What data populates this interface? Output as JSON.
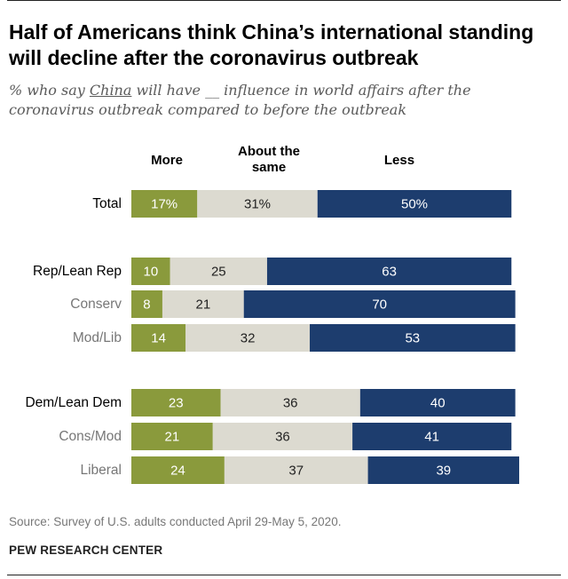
{
  "header": {
    "title": "Half of Americans think China’s international standing will decline after the coronavirus outbreak",
    "subtitle_pre": "% who say ",
    "subtitle_ul": "China",
    "subtitle_post": " will have __ influence in world affairs after the coronavirus outbreak compared to before the outbreak"
  },
  "chart_data": {
    "type": "bar",
    "stacked": true,
    "orientation": "horizontal",
    "series": [
      {
        "name": "More",
        "color": "#8a9a3c"
      },
      {
        "name": "About the same",
        "color": "#dcdad0"
      },
      {
        "name": "Less",
        "color": "#1d3d6e"
      }
    ],
    "rows": [
      {
        "label": "Total",
        "kind": "group",
        "values": [
          17,
          31,
          50
        ],
        "display": [
          "17%",
          "31%",
          "50%"
        ]
      },
      {
        "label": "Rep/Lean Rep",
        "kind": "group",
        "values": [
          10,
          25,
          63
        ],
        "display": [
          "10",
          "25",
          "63"
        ]
      },
      {
        "label": "Conserv",
        "kind": "sub",
        "values": [
          8,
          21,
          70
        ],
        "display": [
          "8",
          "21",
          "70"
        ]
      },
      {
        "label": "Mod/Lib",
        "kind": "sub",
        "values": [
          14,
          32,
          53
        ],
        "display": [
          "14",
          "32",
          "53"
        ]
      },
      {
        "label": "Dem/Lean Dem",
        "kind": "group",
        "values": [
          23,
          36,
          40
        ],
        "display": [
          "23",
          "36",
          "40"
        ]
      },
      {
        "label": "Cons/Mod",
        "kind": "sub",
        "values": [
          21,
          36,
          41
        ],
        "display": [
          "21",
          "36",
          "41"
        ]
      },
      {
        "label": "Liberal",
        "kind": "sub",
        "values": [
          24,
          37,
          39
        ],
        "display": [
          "24",
          "37",
          "39"
        ]
      }
    ],
    "xlim": [
      0,
      100
    ]
  },
  "column_headers": {
    "more": "More",
    "same_line1": "About the",
    "same_line2": "same",
    "less": "Less"
  },
  "footer": {
    "source": "Source: Survey of U.S. adults conducted April 29-May 5, 2020.",
    "org": "PEW RESEARCH CENTER"
  }
}
